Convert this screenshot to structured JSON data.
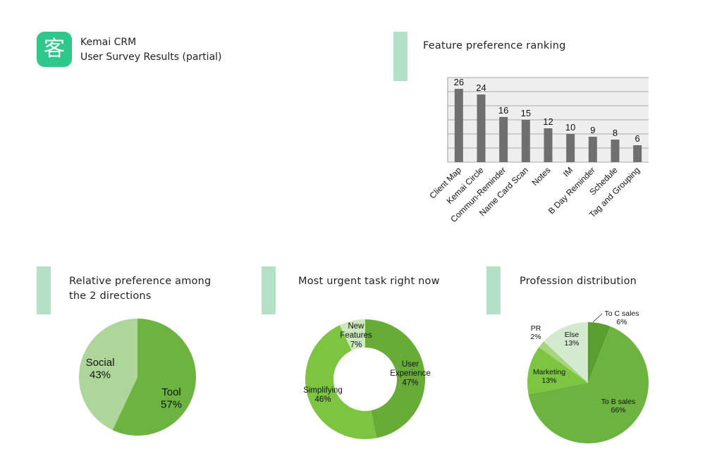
{
  "header": {
    "logo_char": "客",
    "logo_color": "#2fc88a",
    "app_name": "Kemai CRM",
    "subtitle": "User Survey Results (partial)"
  },
  "accent_color": "#b3e0c6",
  "chart_data": [
    {
      "type": "bar",
      "title": "Feature preference ranking",
      "categories": [
        "Client Map",
        "Kemai Circle",
        "Commun-Reminder",
        "Name Card Scan",
        "Notes",
        "IM",
        "B Day Reminder",
        "Schedule",
        "Tag and Grouping"
      ],
      "values": [
        26,
        24,
        16,
        15,
        12,
        10,
        9,
        8,
        6
      ],
      "ylim": [
        0,
        30
      ],
      "grid": true,
      "bar_color": "#6f6f6f"
    },
    {
      "type": "pie",
      "title": "Relative preference among the 2 directions",
      "slices": [
        {
          "label": "Tool",
          "percent": "57%",
          "value": 57,
          "color": "#6db33f"
        },
        {
          "label": "Social",
          "percent": "43%",
          "value": 43,
          "color": "#aed69a"
        }
      ]
    },
    {
      "type": "donut",
      "title": "Most urgent task right now",
      "slices": [
        {
          "label": "User Experience",
          "percent": "47%",
          "value": 47,
          "color": "#68ac38"
        },
        {
          "label": "Simplifying",
          "percent": "46%",
          "value": 46,
          "color": "#7dc441"
        },
        {
          "label": "New Features",
          "percent": "7%",
          "value": 7,
          "color": "#cde8bd"
        }
      ]
    },
    {
      "type": "pie",
      "title": "Profession distribution",
      "slices": [
        {
          "label": "To C sales",
          "percent": "6%",
          "value": 6,
          "color": "#5a9e32"
        },
        {
          "label": "To B sales",
          "percent": "66%",
          "value": 66,
          "color": "#6db33f"
        },
        {
          "label": "Marketing",
          "percent": "13%",
          "value": 13,
          "color": "#7dc441"
        },
        {
          "label": "PR",
          "percent": "2%",
          "value": 2,
          "color": "#a7d47f"
        },
        {
          "label": "Else",
          "percent": "13%",
          "value": 13,
          "color": "#d3ead0"
        }
      ]
    }
  ]
}
